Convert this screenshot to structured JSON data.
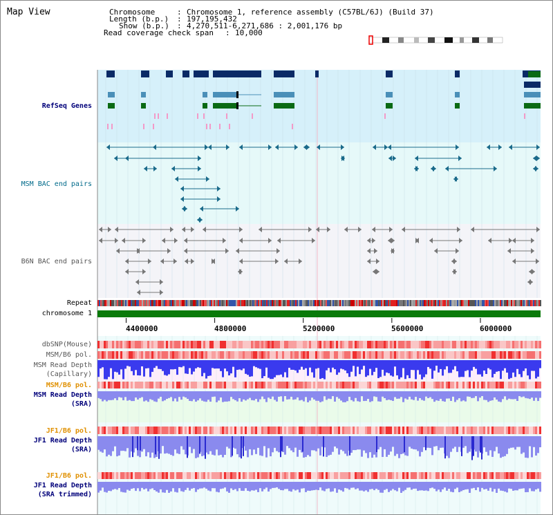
{
  "title": "Map View",
  "info": {
    "chromosome_key": "Chromosome",
    "chromosome_val": "Chromosome 1, reference assembly (C57BL/6J) (Build 37)",
    "length_key": "Length (b.p.)",
    "length_val": "197,195,432",
    "show_key": "Show (b.p.)",
    "show_val": "4,270,511-6,271,686 : 2,001,176 bp",
    "coverage_key": "Read coverage check span",
    "coverage_val": "10,000"
  },
  "tracks": {
    "refseq": "RefSeq Genes",
    "msm_bac": "MSM BAC end pairs",
    "b6n_bac": "B6N BAC end pairs",
    "repeat": "Repeat",
    "chromosome": "chromosome 1",
    "dbsnp": "dbSNP(Mouse)",
    "msm_b6_pol_1": "MSM/B6 pol.",
    "msm_read_depth_cap_1": "MSM Read Depth",
    "msm_read_depth_cap_2": "(Capillary)",
    "msm_b6_pol_2": "MSM/B6 pol.",
    "msm_read_depth_sra_1": "MSM Read Depth",
    "msm_read_depth_sra_2": "(SRA)",
    "jf1_b6_pol_1": "JF1/B6 pol.",
    "jf1_read_depth_sra_1": "JF1 Read Depth",
    "jf1_read_depth_sra_2": "(SRA)",
    "jf1_b6_pol_2": "JF1/B6 pol.",
    "jf1_read_depth_trim_1": "JF1 Read Depth",
    "jf1_read_depth_trim_2": "(SRA trimmed)"
  },
  "axis": {
    "ticks": [
      "4400000",
      "4800000",
      "5200000",
      "5600000",
      "6000000"
    ],
    "tick_values": [
      4400000,
      4800000,
      5200000,
      5600000,
      6000000
    ],
    "range_start": 4270511,
    "range_end": 6271686
  },
  "colors": {
    "refseq_bg": "#d6f0fa",
    "msm_bg": "#e6f9f9",
    "b6n_bg": "#f4f4f8",
    "gene_navy": "#0a2a66",
    "gene_steel": "#4a8fb8",
    "gene_green": "#0a6a14",
    "msm_pair": "#1a6a8a",
    "b6n_pair": "#777777",
    "chromosome_bar": "#0a7a0a",
    "depth_blue": "#3a3aee",
    "depth_light": "#8a8aee"
  }
}
